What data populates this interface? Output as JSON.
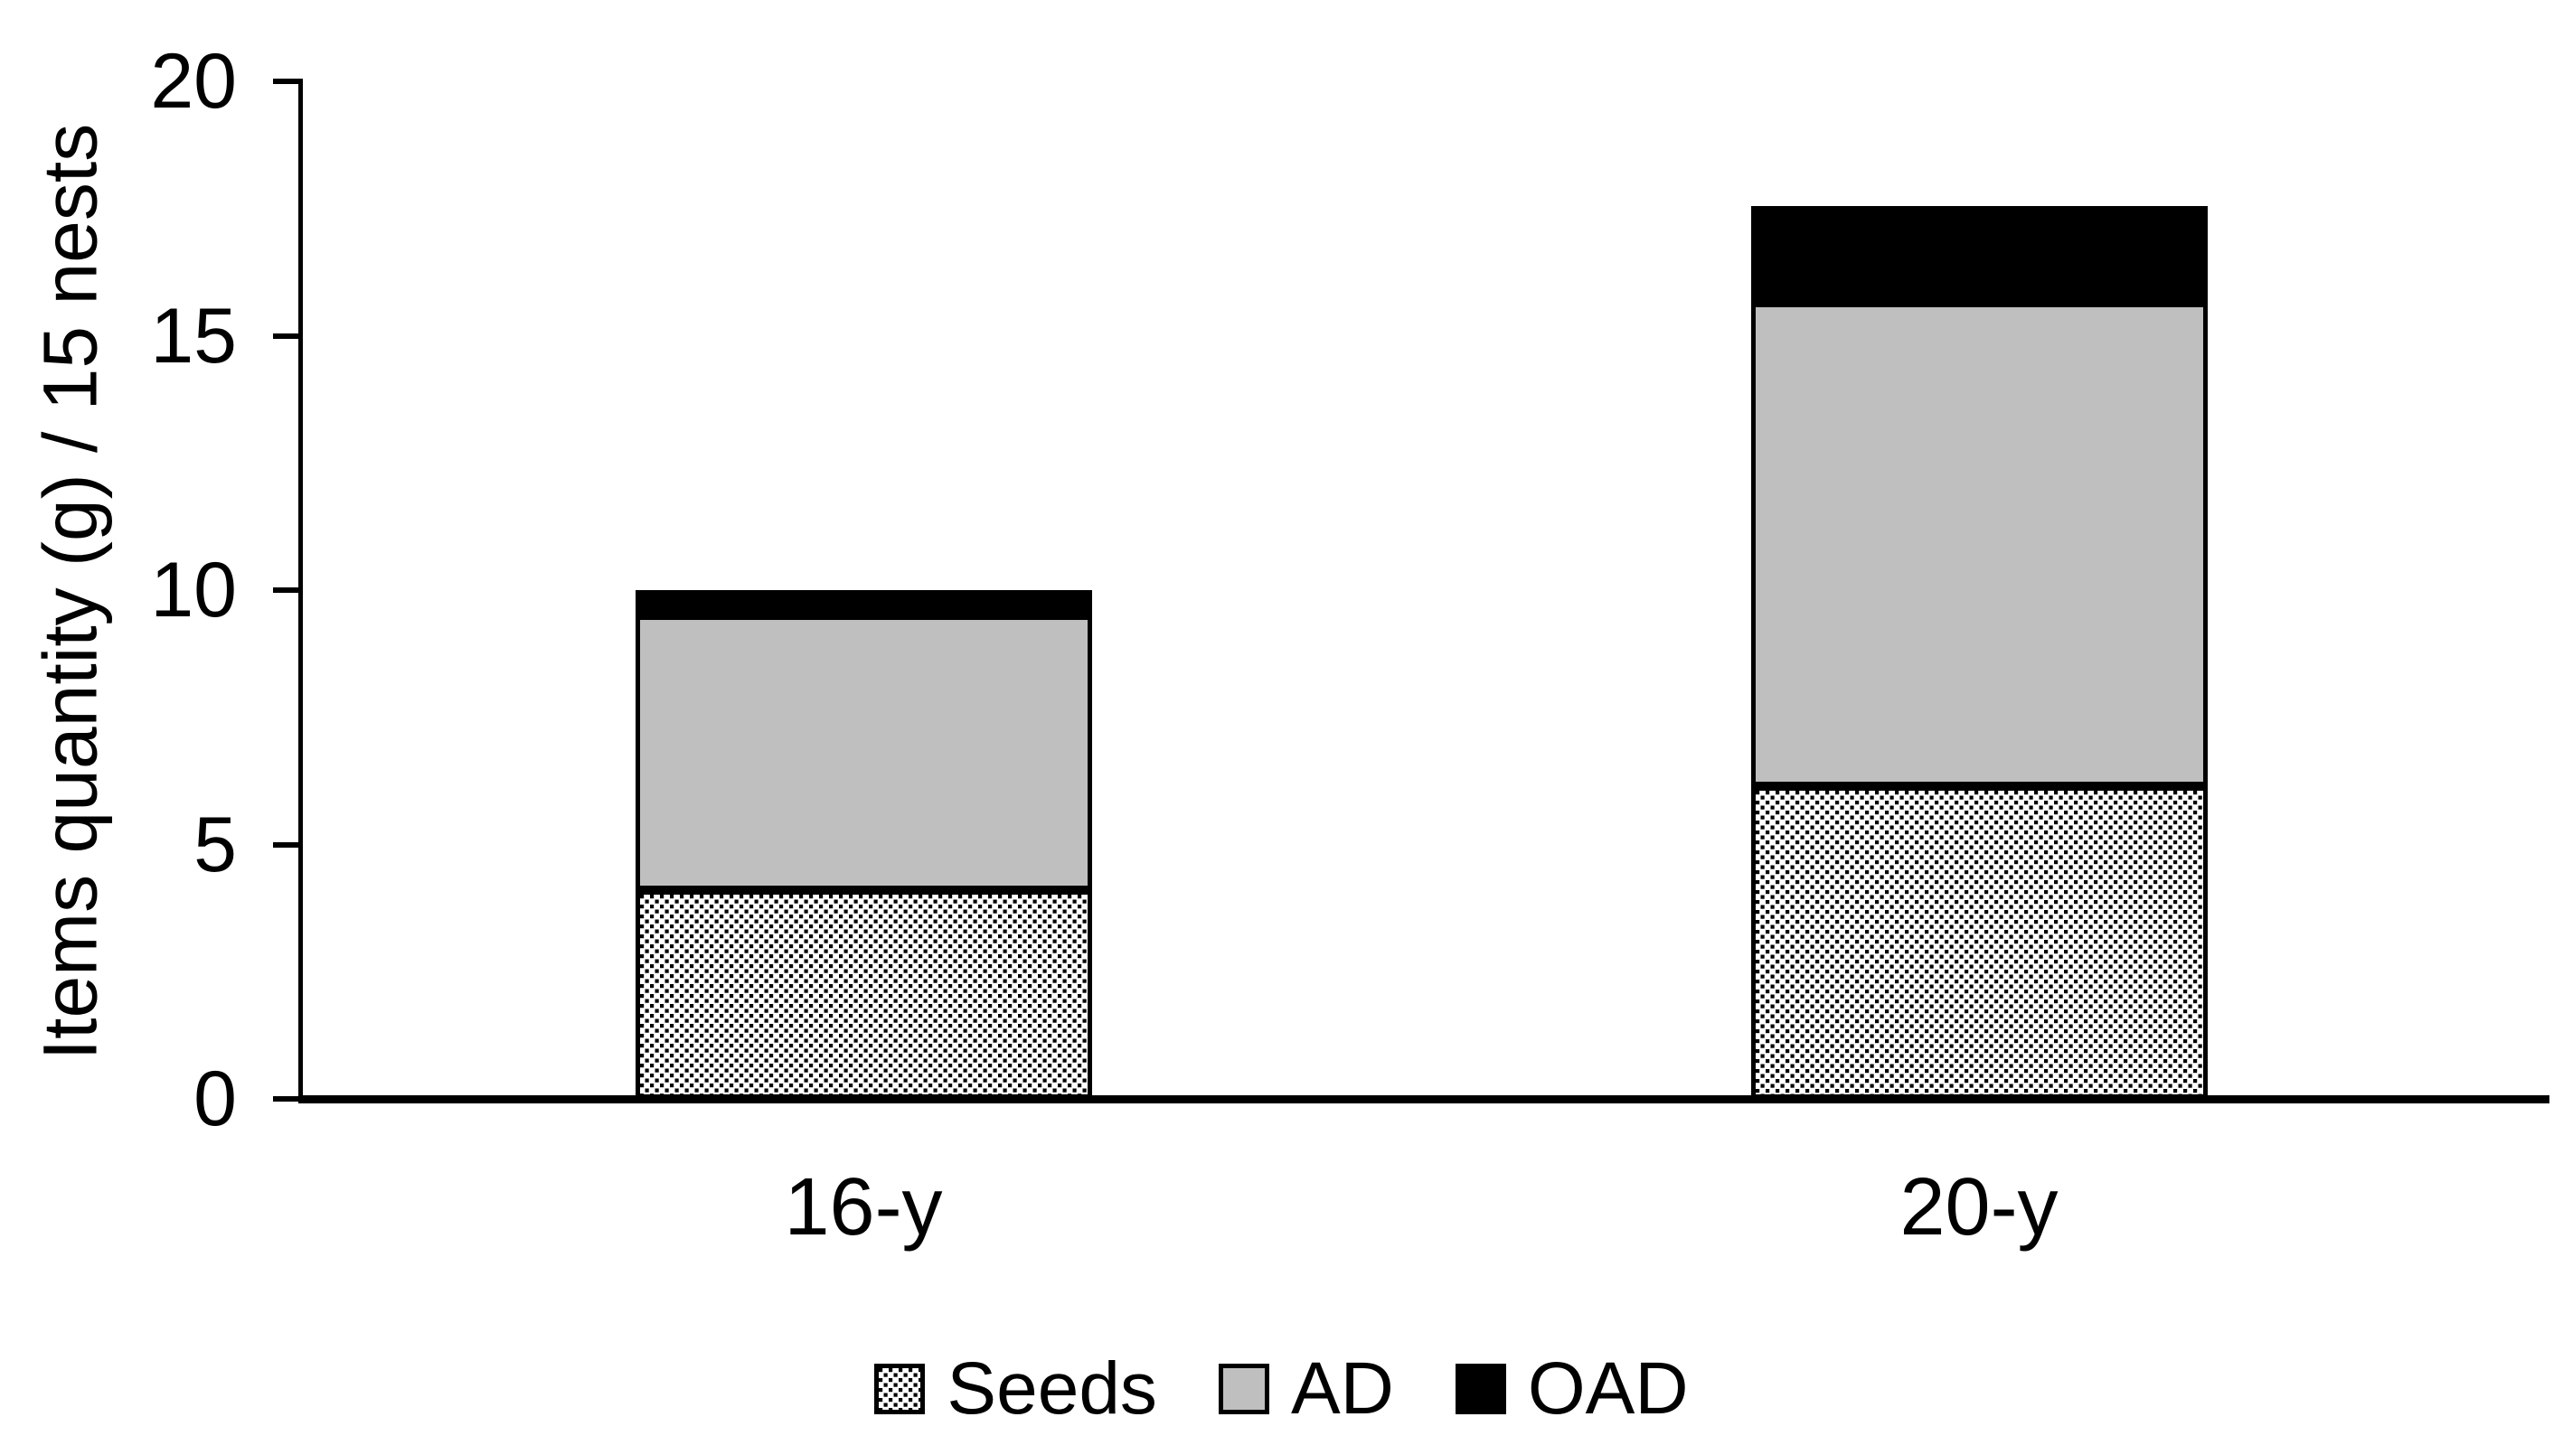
{
  "chart_data": {
    "type": "bar",
    "stacked": true,
    "title": "",
    "categories": [
      "16-y",
      "20-y"
    ],
    "series": [
      {
        "name": "Seeds",
        "values": [
          4.1,
          6.15
        ],
        "fill": "black-white checker pattern"
      },
      {
        "name": "AD",
        "values": [
          5.4,
          9.5
        ],
        "fill": "#bfbfbf"
      },
      {
        "name": "OAD",
        "values": [
          0.5,
          1.9
        ],
        "fill": "#000000"
      }
    ],
    "stack_totals": [
      10.0,
      17.55
    ],
    "xlabel": "",
    "ylabel": "Items quantity (g) / 15 nests",
    "ylim": [
      0,
      20
    ],
    "yticks": [
      0,
      5,
      10,
      15,
      20
    ],
    "grid": false,
    "legend_position": "bottom",
    "legend": [
      "Seeds",
      "AD",
      "OAD"
    ]
  },
  "colors": {
    "background": "#ffffff",
    "axis": "#000000",
    "text": "#000000",
    "ad_fill": "#bfbfbf",
    "oad_fill": "#000000",
    "seeds_pattern_fg": "#000000",
    "seeds_pattern_bg": "#ffffff"
  }
}
